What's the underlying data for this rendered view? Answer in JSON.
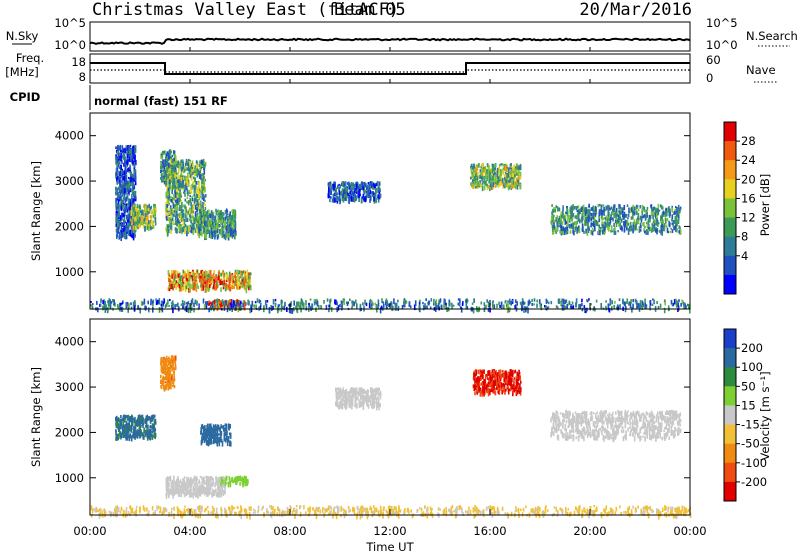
{
  "header": {
    "title": "Christmas Valley East (fitACF)",
    "beam": "Beam 05",
    "date": "20/Mar/2016"
  },
  "strips": {
    "nsky_label": "N.Sky",
    "nsky_ticks": [
      "10^5",
      "10^0"
    ],
    "nsearch_label": "N.Search",
    "nsearch_ticks": [
      "10^5",
      "10^0"
    ],
    "freq_label_1": "Freq.",
    "freq_label_2": "[MHz]",
    "freq_ticks": [
      "18",
      "8"
    ],
    "nave_label": "Nave",
    "nave_ticks": [
      "60",
      "0"
    ],
    "cpid_label": "CPID",
    "cpid_value": "normal (fast) 151 RF"
  },
  "colors": {
    "power": [
      "#0000ff",
      "#2050c0",
      "#2f7c99",
      "#3c9a57",
      "#7ac23a",
      "#e8d020",
      "#f59a18",
      "#f05a10",
      "#e00000"
    ],
    "velocity": [
      "#1a3fc8",
      "#2a6aa0",
      "#2e8a3e",
      "#7ed032",
      "#c8c8c8",
      "#f2c038",
      "#f08a10",
      "#f04b10",
      "#e00000"
    ]
  },
  "chart_data": [
    {
      "type": "heatmap",
      "quantity": "power",
      "xlabel": "",
      "ylabel": "Slant Range [km]",
      "xlim": [
        "00:00",
        "24:00"
      ],
      "ylim": [
        180,
        4500
      ],
      "yticks": [
        "1000",
        "2000",
        "3000",
        "4000"
      ],
      "colorbar_label": "Power [dB]",
      "colorbar_ticks": [
        "4",
        "8",
        "12",
        "16",
        "20",
        "24",
        "28"
      ],
      "colorbar_range": [
        0,
        30
      ],
      "features": [
        {
          "t_start": 1.0,
          "t_end": 1.8,
          "range_km": [
            1800,
            3800
          ],
          "value": 6
        },
        {
          "t_start": 1.6,
          "t_end": 2.6,
          "range_km": [
            2000,
            2500
          ],
          "value": 14
        },
        {
          "t_start": 2.8,
          "t_end": 3.4,
          "range_km": [
            3000,
            3700
          ],
          "value": 10
        },
        {
          "t_start": 3.0,
          "t_end": 4.6,
          "range_km": [
            1900,
            3500
          ],
          "value": 12
        },
        {
          "t_start": 4.3,
          "t_end": 5.8,
          "range_km": [
            1800,
            2400
          ],
          "value": 10
        },
        {
          "t_start": 3.1,
          "t_end": 6.4,
          "range_km": [
            650,
            1050
          ],
          "value": 20
        },
        {
          "t_start": 4.6,
          "t_end": 6.2,
          "range_km": [
            250,
            400
          ],
          "value": 26
        },
        {
          "t_start": 9.5,
          "t_end": 11.6,
          "range_km": [
            2600,
            3000
          ],
          "value": 6
        },
        {
          "t_start": 15.2,
          "t_end": 17.2,
          "range_km": [
            2900,
            3400
          ],
          "value": 14
        },
        {
          "t_start": 18.4,
          "t_end": 23.6,
          "range_km": [
            1900,
            2500
          ],
          "value": 10
        },
        {
          "t_start": 0.0,
          "t_end": 24.0,
          "range_km": [
            200,
            420
          ],
          "value": 8
        }
      ]
    },
    {
      "type": "heatmap",
      "quantity": "velocity",
      "xlabel": "Time UT",
      "ylabel": "Slant Range [km]",
      "xticks": [
        "00:00",
        "04:00",
        "08:00",
        "12:00",
        "16:00",
        "20:00",
        "00:00"
      ],
      "xlim": [
        "00:00",
        "24:00"
      ],
      "ylim": [
        180,
        4500
      ],
      "yticks": [
        "1000",
        "2000",
        "3000",
        "4000"
      ],
      "colorbar_label": "Velocity [m s⁻¹]",
      "colorbar_ticks": [
        "200",
        "100",
        "50",
        "15",
        "-15",
        "-50",
        "-100",
        "-200"
      ],
      "features": [
        {
          "t_start": 1.0,
          "t_end": 2.6,
          "range_km": [
            1900,
            2400
          ],
          "value": 120
        },
        {
          "t_start": 2.8,
          "t_end": 3.4,
          "range_km": [
            3000,
            3700
          ],
          "value": -80
        },
        {
          "t_start": 4.4,
          "t_end": 5.6,
          "range_km": [
            1800,
            2200
          ],
          "value": 150
        },
        {
          "t_start": 3.0,
          "t_end": 5.4,
          "range_km": [
            650,
            1050
          ],
          "value": 0
        },
        {
          "t_start": 5.2,
          "t_end": 6.3,
          "range_km": [
            900,
            1050
          ],
          "value": 30
        },
        {
          "t_start": 9.8,
          "t_end": 11.6,
          "range_km": [
            2600,
            3000
          ],
          "value": 0
        },
        {
          "t_start": 15.3,
          "t_end": 17.2,
          "range_km": [
            2900,
            3400
          ],
          "value": -220
        },
        {
          "t_start": 18.4,
          "t_end": 23.6,
          "range_km": [
            1900,
            2500
          ],
          "value": 0
        },
        {
          "t_start": 0.0,
          "t_end": 24.0,
          "range_km": [
            200,
            400
          ],
          "value": -20
        }
      ]
    }
  ]
}
